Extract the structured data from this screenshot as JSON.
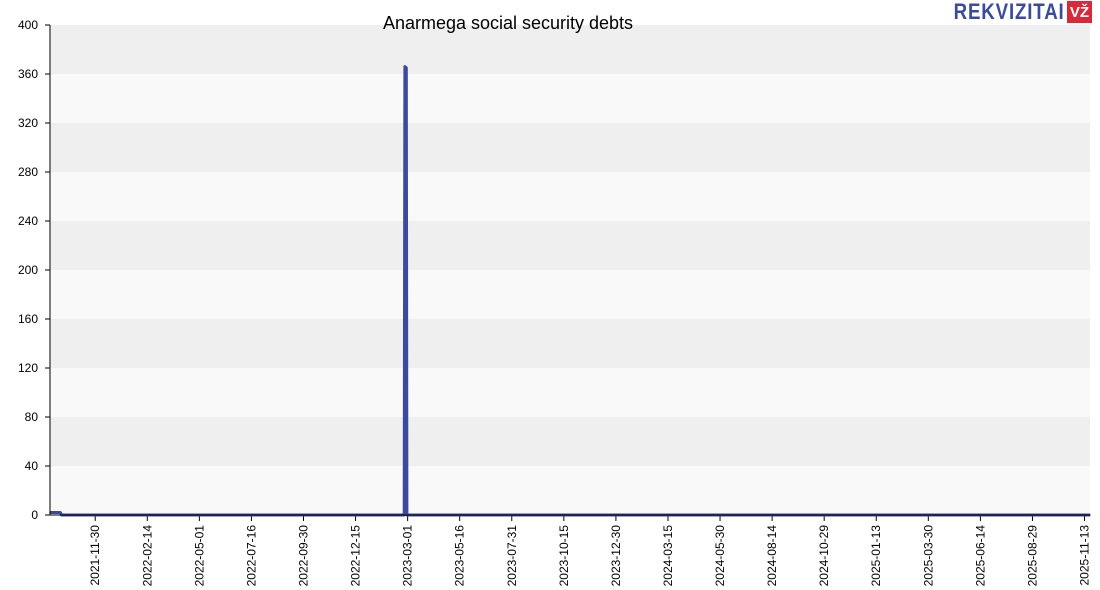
{
  "brand": {
    "name": "REKVIZITAI",
    "badge": "VŽ"
  },
  "colors": {
    "line": "#3b4a9c",
    "band_dark": "#efefef",
    "band_light": "#f9f9f9",
    "axis": "#000000"
  },
  "chart_data": {
    "type": "line",
    "title": "Anarmega social security debts",
    "xlabel": "",
    "ylabel": "",
    "ylim": [
      0,
      400
    ],
    "yticks": [
      0,
      40,
      80,
      120,
      160,
      200,
      240,
      280,
      320,
      360,
      400
    ],
    "xlim": [
      "2021-09-25",
      "2025-11-21"
    ],
    "xticks": [
      "2021-11-30",
      "2022-02-14",
      "2022-05-01",
      "2022-07-16",
      "2022-09-30",
      "2022-12-15",
      "2023-03-01",
      "2023-05-16",
      "2023-07-31",
      "2023-10-15",
      "2023-12-30",
      "2024-03-15",
      "2024-05-30",
      "2024-08-14",
      "2024-10-29",
      "2025-01-13",
      "2025-03-30",
      "2025-06-14",
      "2025-08-29",
      "2025-11-13"
    ],
    "grid": "horizontal bands",
    "series": [
      {
        "color": "#3b4a9c",
        "points": [
          [
            "2021-09-25",
            2
          ],
          [
            "2021-10-10",
            2
          ],
          [
            "2021-10-12",
            0
          ],
          [
            "2023-02-24",
            0
          ],
          [
            "2023-02-25",
            366
          ],
          [
            "2023-02-27",
            365
          ],
          [
            "2023-02-28",
            0
          ],
          [
            "2025-11-21",
            0
          ]
        ]
      }
    ]
  }
}
